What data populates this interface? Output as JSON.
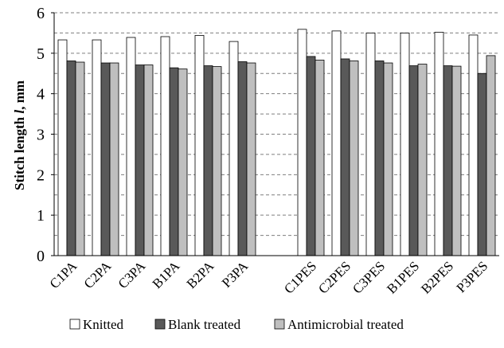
{
  "chart_data": {
    "type": "bar",
    "title": "",
    "xlabel": "",
    "ylabel": {
      "prefix": "Stitch length ",
      "symbol": "l",
      "suffix": ", mm"
    },
    "ylim": [
      0,
      6
    ],
    "yticks": [
      "0",
      "1",
      "2",
      "3",
      "4",
      "5",
      "6"
    ],
    "grid": "dashed horizontal lines every 0.5",
    "legend_position": "bottom",
    "categories": [
      "C1PA",
      "C2PA",
      "C3PA",
      "B1PA",
      "B2PA",
      "P3PA",
      "",
      "C1PES",
      "C2PES",
      "C3PES",
      "B1PES",
      "B2PES",
      "P3PES"
    ],
    "series": [
      {
        "name": "Knitted",
        "color": "#ffffff",
        "values": [
          5.33,
          5.33,
          5.39,
          5.41,
          5.44,
          5.29,
          null,
          5.59,
          5.55,
          5.5,
          5.5,
          5.52,
          5.45
        ]
      },
      {
        "name": "Blank treated",
        "color": "#595959",
        "values": [
          4.81,
          4.76,
          4.71,
          4.64,
          4.69,
          4.79,
          null,
          4.92,
          4.86,
          4.81,
          4.69,
          4.69,
          4.5
        ]
      },
      {
        "name": "Antimicrobial treated",
        "color": "#bfbfbf",
        "values": [
          4.78,
          4.76,
          4.71,
          4.61,
          4.67,
          4.76,
          null,
          4.83,
          4.81,
          4.76,
          4.73,
          4.68,
          4.94
        ]
      }
    ]
  }
}
